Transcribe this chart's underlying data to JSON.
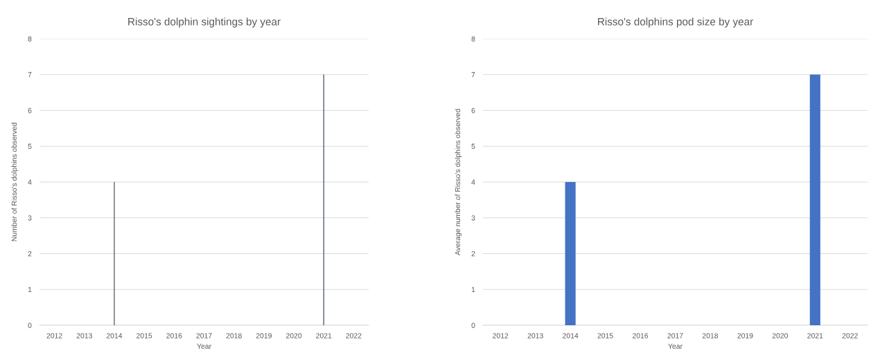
{
  "chart_data": [
    {
      "type": "bar",
      "title": "Risso's dolphin sightings by year",
      "xlabel": "Year",
      "ylabel": "Number of Risso's dolphins observed",
      "categories": [
        "2012",
        "2013",
        "2014",
        "2015",
        "2016",
        "2017",
        "2018",
        "2019",
        "2020",
        "2021",
        "2022"
      ],
      "values": [
        0,
        0,
        4,
        0,
        0,
        0,
        0,
        0,
        0,
        7,
        0
      ],
      "colors": [
        "#595959",
        "#595959",
        "#595959",
        "#595959",
        "#595959",
        "#595959",
        "#595959",
        "#595959",
        "#595959",
        "#44546a",
        "#44546a"
      ],
      "ylim": [
        0,
        8
      ],
      "yticks": [
        0,
        1,
        2,
        3,
        4,
        5,
        6,
        7,
        8
      ],
      "grid": "y",
      "legend": false
    },
    {
      "type": "bar",
      "title": "Risso's dolphins pod size by year",
      "xlabel": "Year",
      "ylabel": "Average number of Risso's dolphins observed",
      "categories": [
        "2012",
        "2013",
        "2014",
        "2015",
        "2016",
        "2017",
        "2018",
        "2019",
        "2020",
        "2021",
        "2022"
      ],
      "values": [
        0,
        0,
        4,
        0,
        0,
        0,
        0,
        0,
        0,
        7,
        0
      ],
      "color": "#4472c4",
      "ylim": [
        0,
        8
      ],
      "yticks": [
        0,
        1,
        2,
        3,
        4,
        5,
        6,
        7,
        8
      ],
      "grid": "y",
      "legend": false
    }
  ]
}
